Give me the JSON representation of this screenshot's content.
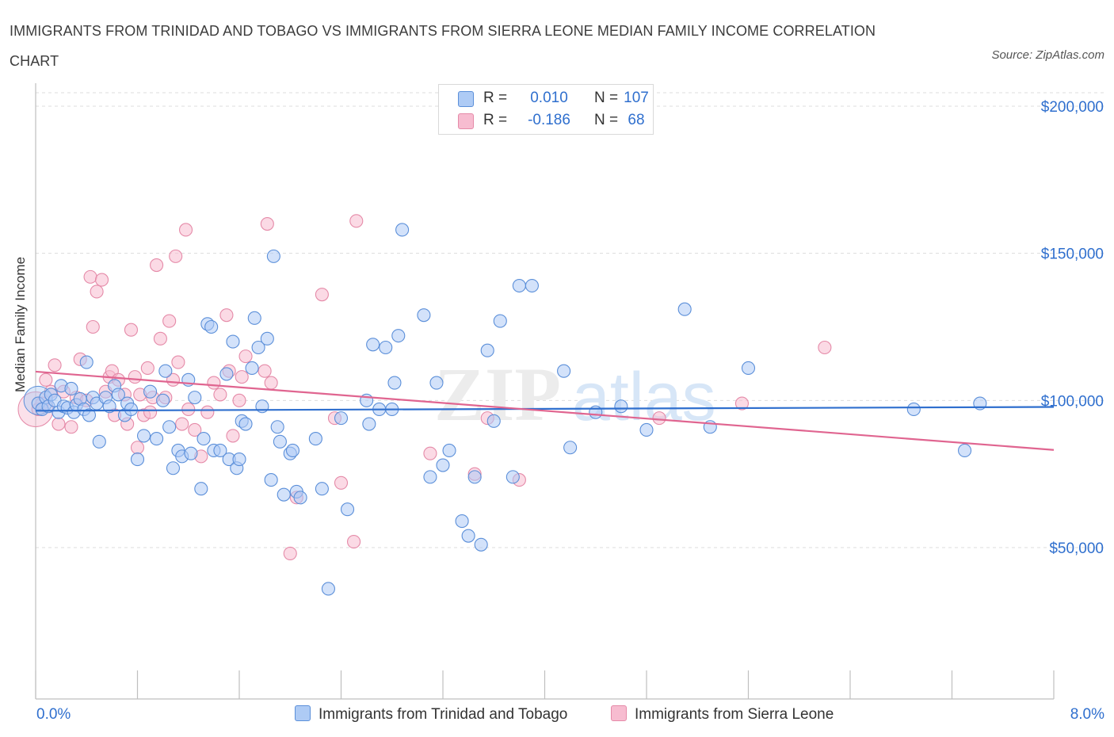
{
  "header": {
    "title": "IMMIGRANTS FROM TRINIDAD AND TOBAGO VS IMMIGRANTS FROM SIERRA LEONE MEDIAN FAMILY INCOME CORRELATION CHART",
    "source": "Source: ZipAtlas.com"
  },
  "legend": {
    "series1": {
      "r_label": "R =",
      "r_value": "0.010",
      "n_label": "N =",
      "n_value": "107"
    },
    "series2": {
      "r_label": "R =",
      "r_value": "-0.186",
      "n_label": "N =",
      "n_value": "68"
    }
  },
  "colors": {
    "series1_fill": "#aecbf5",
    "series1_stroke": "#5b8fd9",
    "series1_line": "#2f6fce",
    "series2_fill": "#f7bcd0",
    "series2_stroke": "#e58aa8",
    "series2_line": "#e06590",
    "axis_text": "#2f6fce",
    "grid": "#dcdcdc"
  },
  "watermark": {
    "zip": "ZIP",
    "atlas": "atlas"
  },
  "chart_data": {
    "type": "scatter",
    "title": "IMMIGRANTS FROM TRINIDAD AND TOBAGO VS IMMIGRANTS FROM SIERRA LEONE MEDIAN FAMILY INCOME CORRELATION CHART",
    "ylabel": "Median Family Income",
    "xlim": [
      0,
      8
    ],
    "ylim": [
      0,
      200000
    ],
    "x_tick_labels": [
      "0.0%",
      "8.0%"
    ],
    "y_ticks": [
      50000,
      100000,
      150000,
      200000
    ],
    "y_tick_labels": [
      "$50,000",
      "$100,000",
      "$150,000",
      "$200,000"
    ],
    "grid": true,
    "legend_position": "top-center",
    "series": [
      {
        "name": "Immigrants from Trinidad and Tobago",
        "trend": {
          "x": [
            0,
            8
          ],
          "y": [
            96500,
            97800
          ]
        },
        "points": [
          [
            0.02,
            99000
          ],
          [
            0.05,
            97000
          ],
          [
            0.08,
            101000
          ],
          [
            0.1,
            98000
          ],
          [
            0.12,
            102000
          ],
          [
            0.15,
            100000
          ],
          [
            0.18,
            96000
          ],
          [
            0.2,
            105000
          ],
          [
            0.22,
            98000
          ],
          [
            0.25,
            97500
          ],
          [
            0.28,
            104000
          ],
          [
            0.3,
            96000
          ],
          [
            0.32,
            98500
          ],
          [
            0.35,
            100500
          ],
          [
            0.38,
            97000
          ],
          [
            0.4,
            113000
          ],
          [
            0.42,
            95000
          ],
          [
            0.45,
            101000
          ],
          [
            0.48,
            99000
          ],
          [
            0.5,
            86000
          ],
          [
            0.55,
            101000
          ],
          [
            0.58,
            98000
          ],
          [
            0.62,
            105000
          ],
          [
            0.65,
            102000
          ],
          [
            0.7,
            95000
          ],
          [
            0.72,
            99000
          ],
          [
            0.75,
            97000
          ],
          [
            0.8,
            80000
          ],
          [
            0.85,
            88000
          ],
          [
            0.9,
            103000
          ],
          [
            0.95,
            87000
          ],
          [
            1.0,
            100000
          ],
          [
            1.02,
            110000
          ],
          [
            1.05,
            91000
          ],
          [
            1.08,
            77000
          ],
          [
            1.12,
            83000
          ],
          [
            1.15,
            81000
          ],
          [
            1.2,
            107000
          ],
          [
            1.22,
            82000
          ],
          [
            1.25,
            101000
          ],
          [
            1.3,
            70000
          ],
          [
            1.32,
            87000
          ],
          [
            1.35,
            126000
          ],
          [
            1.38,
            125000
          ],
          [
            1.4,
            83000
          ],
          [
            1.45,
            83000
          ],
          [
            1.5,
            109000
          ],
          [
            1.52,
            80000
          ],
          [
            1.55,
            120000
          ],
          [
            1.58,
            77000
          ],
          [
            1.6,
            80000
          ],
          [
            1.62,
            93000
          ],
          [
            1.65,
            92000
          ],
          [
            1.7,
            111000
          ],
          [
            1.72,
            128000
          ],
          [
            1.75,
            118000
          ],
          [
            1.78,
            98000
          ],
          [
            1.82,
            121000
          ],
          [
            1.85,
            73000
          ],
          [
            1.87,
            149000
          ],
          [
            1.9,
            91000
          ],
          [
            1.92,
            86000
          ],
          [
            1.95,
            68000
          ],
          [
            2.0,
            82000
          ],
          [
            2.02,
            83000
          ],
          [
            2.05,
            69000
          ],
          [
            2.08,
            67000
          ],
          [
            2.2,
            87000
          ],
          [
            2.25,
            70000
          ],
          [
            2.3,
            36000
          ],
          [
            2.4,
            94000
          ],
          [
            2.45,
            63000
          ],
          [
            2.6,
            100000
          ],
          [
            2.62,
            92000
          ],
          [
            2.65,
            119000
          ],
          [
            2.7,
            97000
          ],
          [
            2.75,
            118000
          ],
          [
            2.8,
            97000
          ],
          [
            2.82,
            106000
          ],
          [
            2.85,
            122000
          ],
          [
            2.88,
            158000
          ],
          [
            3.05,
            129000
          ],
          [
            3.1,
            74000
          ],
          [
            3.15,
            106000
          ],
          [
            3.2,
            78000
          ],
          [
            3.25,
            83000
          ],
          [
            3.35,
            59000
          ],
          [
            3.4,
            54000
          ],
          [
            3.45,
            74000
          ],
          [
            3.5,
            51000
          ],
          [
            3.55,
            117000
          ],
          [
            3.6,
            93000
          ],
          [
            3.65,
            127000
          ],
          [
            3.75,
            74000
          ],
          [
            3.8,
            139000
          ],
          [
            3.9,
            139000
          ],
          [
            4.15,
            110000
          ],
          [
            4.2,
            84000
          ],
          [
            4.4,
            96000
          ],
          [
            4.6,
            98000
          ],
          [
            4.8,
            90000
          ],
          [
            5.1,
            131000
          ],
          [
            5.3,
            91000
          ],
          [
            5.6,
            111000
          ],
          [
            6.9,
            97000
          ],
          [
            7.3,
            83000
          ],
          [
            7.42,
            99000
          ]
        ]
      },
      {
        "name": "Immigrants from Sierra Leone",
        "trend": {
          "x": [
            0,
            8
          ],
          "y": [
            109800,
            83200
          ]
        },
        "points": [
          [
            0.02,
            97000
          ],
          [
            0.05,
            99000
          ],
          [
            0.08,
            107000
          ],
          [
            0.12,
            103000
          ],
          [
            0.15,
            112000
          ],
          [
            0.18,
            92000
          ],
          [
            0.22,
            103000
          ],
          [
            0.28,
            91000
          ],
          [
            0.32,
            101000
          ],
          [
            0.35,
            114000
          ],
          [
            0.4,
            100000
          ],
          [
            0.43,
            142000
          ],
          [
            0.45,
            125000
          ],
          [
            0.48,
            137000
          ],
          [
            0.52,
            141000
          ],
          [
            0.55,
            103000
          ],
          [
            0.58,
            108000
          ],
          [
            0.6,
            110000
          ],
          [
            0.62,
            95000
          ],
          [
            0.65,
            107000
          ],
          [
            0.7,
            102000
          ],
          [
            0.72,
            92000
          ],
          [
            0.75,
            124000
          ],
          [
            0.78,
            108000
          ],
          [
            0.8,
            84000
          ],
          [
            0.82,
            102000
          ],
          [
            0.85,
            95000
          ],
          [
            0.88,
            111000
          ],
          [
            0.9,
            96000
          ],
          [
            0.92,
            101000
          ],
          [
            0.95,
            146000
          ],
          [
            0.98,
            121000
          ],
          [
            1.02,
            101000
          ],
          [
            1.05,
            127000
          ],
          [
            1.08,
            107000
          ],
          [
            1.1,
            149000
          ],
          [
            1.12,
            113000
          ],
          [
            1.15,
            92000
          ],
          [
            1.18,
            158000
          ],
          [
            1.2,
            97000
          ],
          [
            1.25,
            90000
          ],
          [
            1.3,
            81000
          ],
          [
            1.35,
            96000
          ],
          [
            1.4,
            106000
          ],
          [
            1.45,
            102000
          ],
          [
            1.5,
            129000
          ],
          [
            1.52,
            110000
          ],
          [
            1.55,
            88000
          ],
          [
            1.6,
            100000
          ],
          [
            1.62,
            108000
          ],
          [
            1.65,
            115000
          ],
          [
            1.8,
            110000
          ],
          [
            1.82,
            160000
          ],
          [
            1.85,
            106000
          ],
          [
            2.0,
            48000
          ],
          [
            2.05,
            67000
          ],
          [
            2.25,
            136000
          ],
          [
            2.35,
            94000
          ],
          [
            2.4,
            72000
          ],
          [
            2.5,
            52000
          ],
          [
            2.52,
            161000
          ],
          [
            3.1,
            82000
          ],
          [
            3.45,
            75000
          ],
          [
            3.55,
            94000
          ],
          [
            3.8,
            73000
          ],
          [
            4.9,
            94000
          ],
          [
            5.55,
            99000
          ],
          [
            6.2,
            118000
          ]
        ]
      }
    ]
  }
}
